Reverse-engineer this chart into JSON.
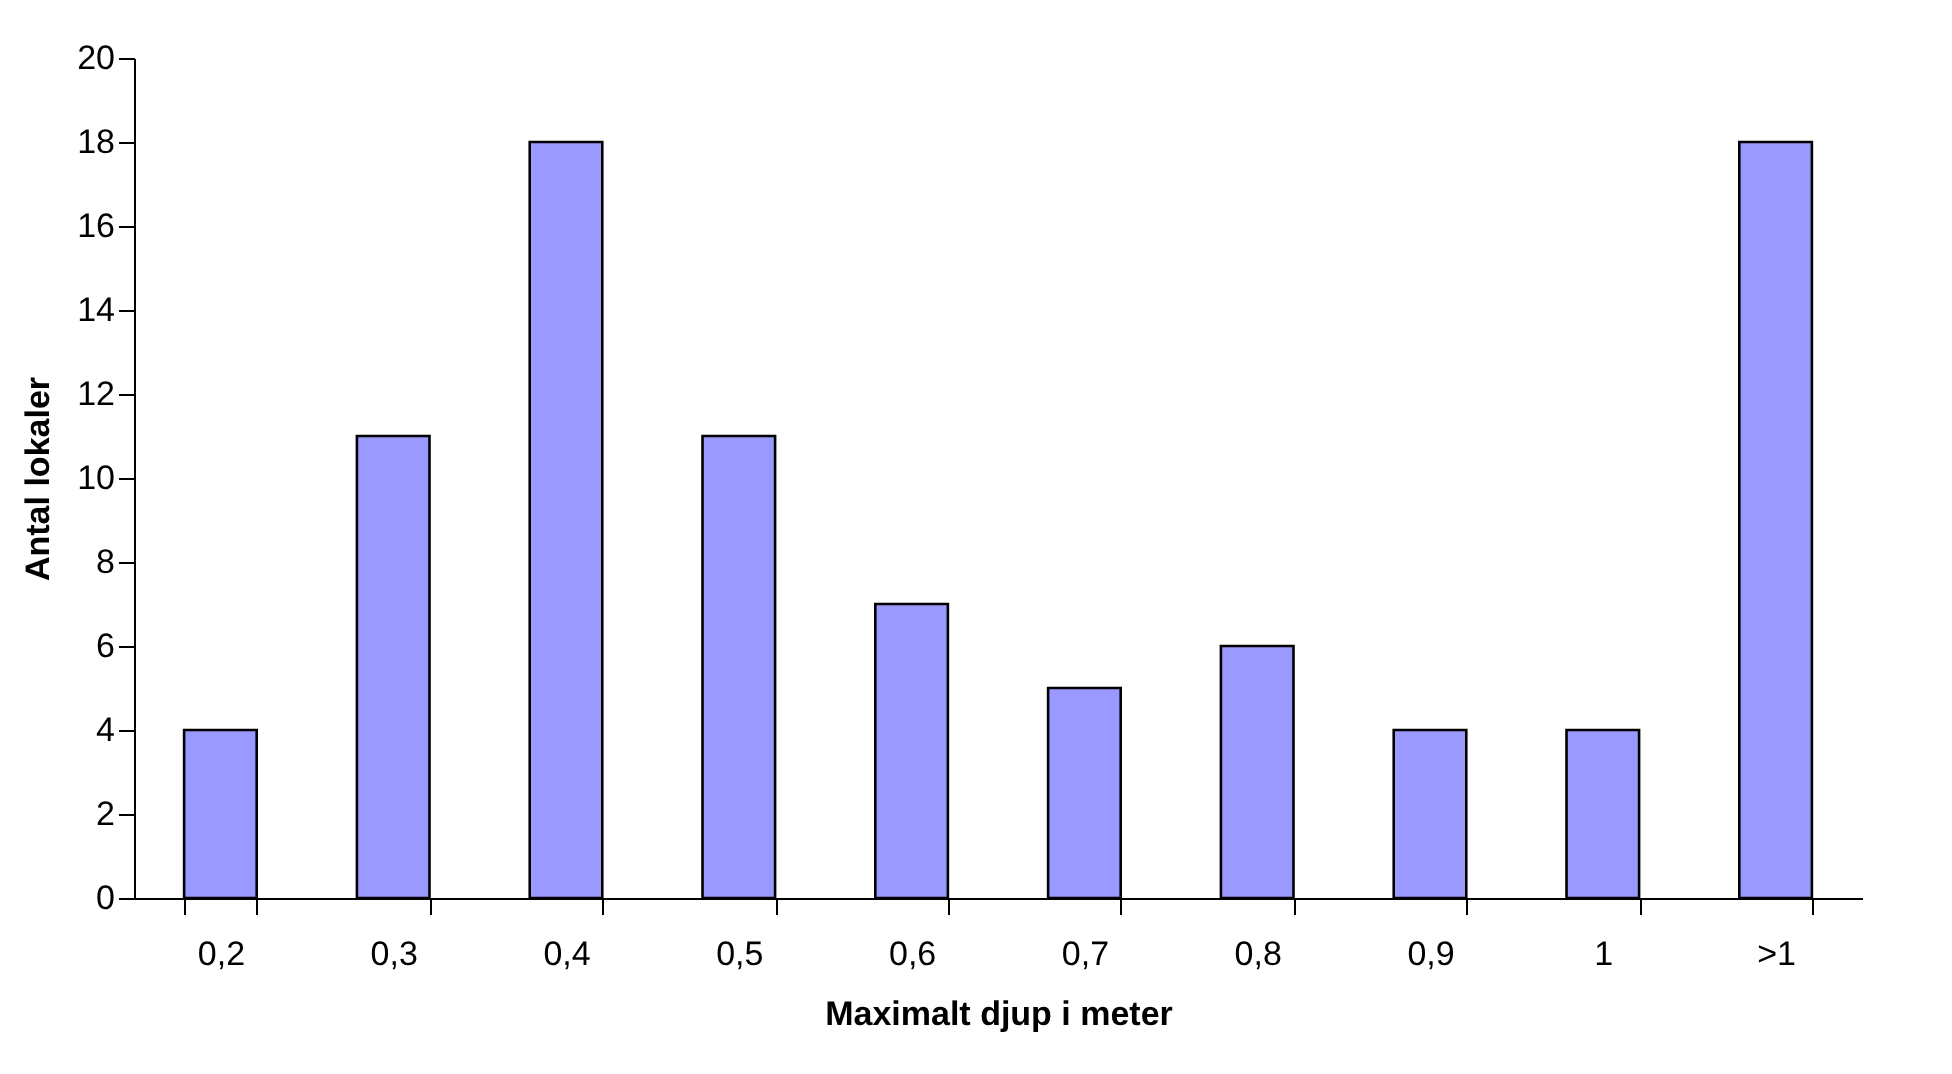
{
  "chart_data": {
    "type": "bar",
    "xlabel": "Maximalt djup i meter",
    "ylabel": "Antal lokaler",
    "categories": [
      "0,2",
      "0,3",
      "0,4",
      "0,5",
      "0,6",
      "0,7",
      "0,8",
      "0,9",
      "1",
      ">1"
    ],
    "values": [
      4,
      11,
      18,
      11,
      7,
      5,
      6,
      4,
      4,
      18
    ],
    "color": "#9999ff",
    "ylim": [
      0,
      20
    ],
    "yticks": [
      0,
      2,
      4,
      6,
      8,
      10,
      12,
      14,
      16,
      18,
      20
    ],
    "grid": false
  }
}
